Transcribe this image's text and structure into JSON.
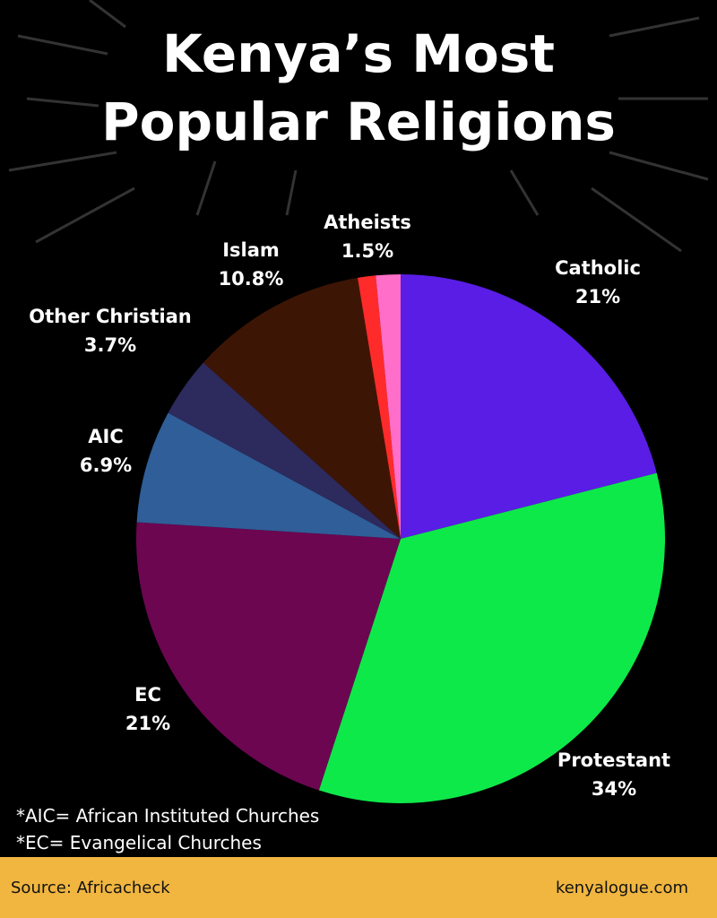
{
  "chart_data": {
    "type": "pie",
    "title": "Kenya’s Most Popular Religions",
    "categories": [
      "Catholic",
      "Protestant",
      "EC",
      "AIC",
      "Other Christian",
      "Islam",
      null,
      "Atheists"
    ],
    "values": [
      21,
      34,
      21,
      6.9,
      3.7,
      10.8,
      1.1,
      1.5
    ],
    "value_labels": [
      "21%",
      "34%",
      "21%",
      "6.9%",
      "3.7%",
      "10.8%",
      null,
      "1.5%"
    ],
    "colors": [
      "#5a1de6",
      "#0ee94a",
      "#6c0651",
      "#2f5e98",
      "#2d2a5d",
      "#3d1505",
      "#ff2b2b",
      "#ff6ec8"
    ],
    "notes": [
      "*AIC= African Instituted Churches",
      "*EC= Evangelical Churches"
    ],
    "source": "Source: Africacheck",
    "website": "kenyalogue.com"
  }
}
